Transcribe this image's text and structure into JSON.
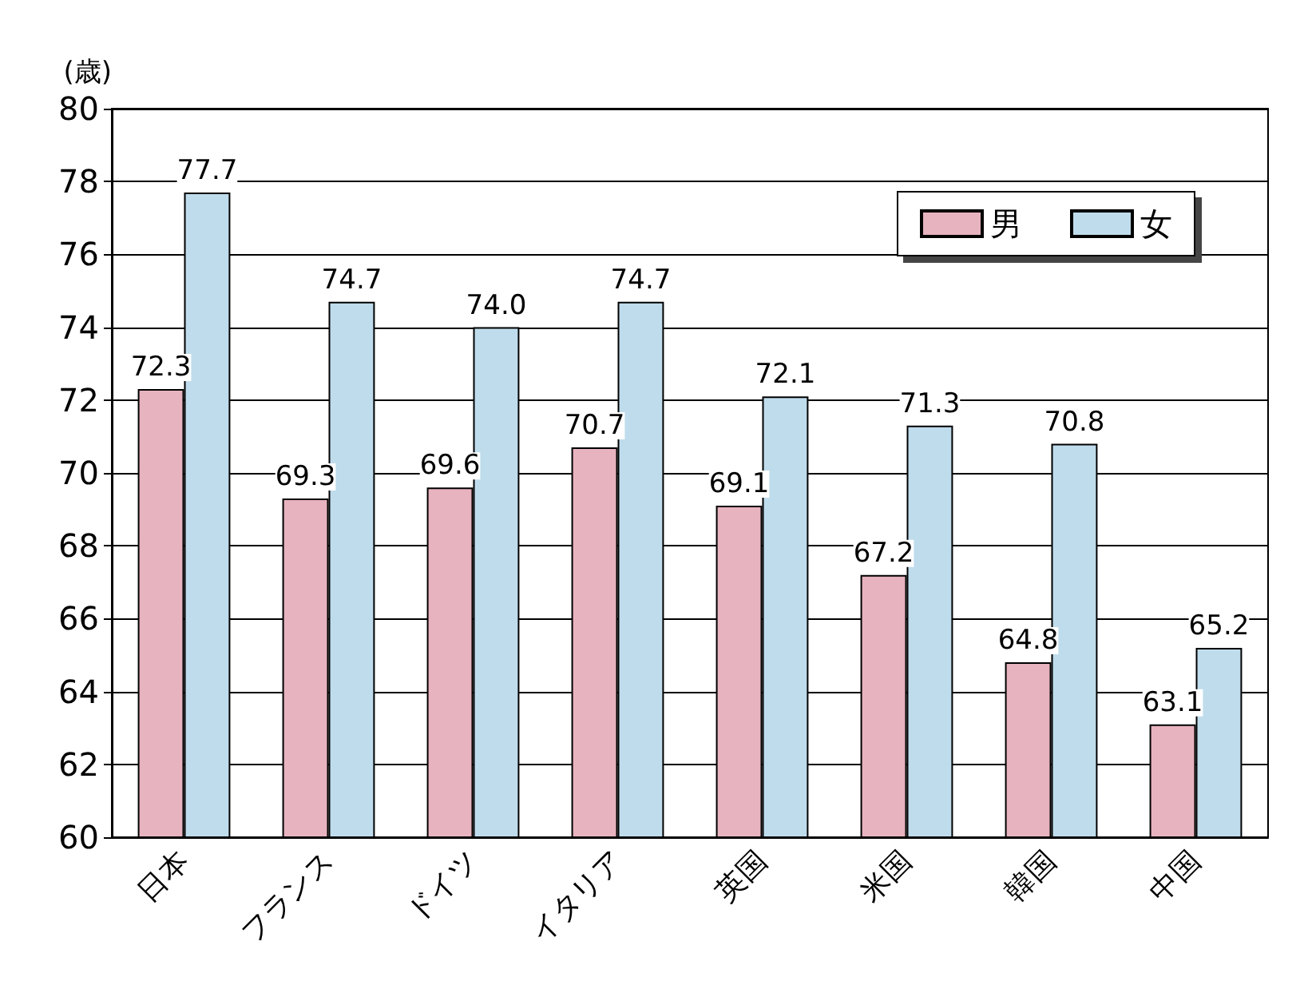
{
  "chart_data": {
    "type": "bar",
    "ylabel": "(歳)",
    "categories": [
      "日本",
      "フランス",
      "ドイツ",
      "イタリア",
      "英国",
      "米国",
      "韓国",
      "中国"
    ],
    "series": [
      {
        "name": "男",
        "color": "#e7b3bf",
        "values": [
          72.3,
          69.3,
          69.6,
          70.7,
          69.1,
          67.2,
          64.8,
          63.1
        ],
        "value_labels": [
          "72.3",
          "69.3",
          "69.6",
          "70.7",
          "69.1",
          "67.2",
          "64.8",
          "63.1"
        ]
      },
      {
        "name": "女",
        "color": "#bfdcec",
        "values": [
          77.7,
          74.7,
          74.0,
          74.7,
          72.1,
          71.3,
          70.8,
          65.2
        ],
        "value_labels": [
          "77.7",
          "74.7",
          "74.0",
          "74.7",
          "72.1",
          "71.3",
          "70.8",
          "65.2"
        ]
      }
    ],
    "ylim": [
      60,
      80
    ],
    "yticks": [
      60,
      62,
      64,
      66,
      68,
      70,
      72,
      74,
      76,
      78,
      80
    ],
    "grid": "y",
    "legend": "top right"
  }
}
